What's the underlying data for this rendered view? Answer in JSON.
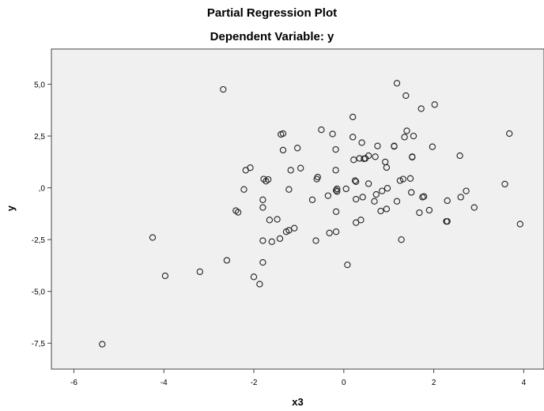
{
  "chart_data": {
    "type": "scatter",
    "title": "Partial Regression Plot",
    "subtitle": "Dependent Variable: y",
    "xlabel": "x3",
    "ylabel": "y",
    "xlim": [
      -6.5,
      4.45
    ],
    "ylim": [
      -8.75,
      6.7
    ],
    "x_ticks": [
      -6,
      -4,
      -2,
      0,
      2,
      4
    ],
    "x_tick_labels": [
      "-6",
      "-4",
      "-2",
      "0",
      "2",
      "4"
    ],
    "y_ticks": [
      -7.5,
      -5.0,
      -2.5,
      0.0,
      2.5,
      5.0
    ],
    "y_tick_labels": [
      "-7,5",
      "-5,0",
      "-2,5",
      ",0",
      "2,5",
      "5,0"
    ],
    "plot_background": "#f0f0f0",
    "marker_color": "#222222",
    "grid": false,
    "points": [
      [
        -5.37,
        -7.55
      ],
      [
        -4.25,
        -2.4
      ],
      [
        -3.97,
        -4.25
      ],
      [
        -3.2,
        -4.05
      ],
      [
        -2.68,
        4.75
      ],
      [
        -2.6,
        -3.5
      ],
      [
        -2.4,
        -1.1
      ],
      [
        -2.35,
        -1.18
      ],
      [
        -2.22,
        -0.08
      ],
      [
        -2.18,
        0.85
      ],
      [
        -2.08,
        0.97
      ],
      [
        -2.0,
        -4.3
      ],
      [
        -1.87,
        -4.65
      ],
      [
        -1.8,
        -3.6
      ],
      [
        -1.8,
        -0.95
      ],
      [
        -1.8,
        -2.55
      ],
      [
        -1.8,
        -0.58
      ],
      [
        -1.78,
        0.42
      ],
      [
        -1.73,
        0.32
      ],
      [
        -1.68,
        0.4
      ],
      [
        -1.65,
        -1.55
      ],
      [
        -1.6,
        -2.6
      ],
      [
        -1.48,
        -1.52
      ],
      [
        -1.42,
        -2.45
      ],
      [
        -1.4,
        2.58
      ],
      [
        -1.35,
        2.62
      ],
      [
        -1.35,
        1.82
      ],
      [
        -1.28,
        -2.12
      ],
      [
        -1.22,
        -2.05
      ],
      [
        -1.22,
        -0.08
      ],
      [
        -1.18,
        0.85
      ],
      [
        -1.1,
        -1.95
      ],
      [
        -1.03,
        1.92
      ],
      [
        -0.96,
        0.95
      ],
      [
        -0.7,
        -0.58
      ],
      [
        -0.62,
        -2.55
      ],
      [
        -0.6,
        0.42
      ],
      [
        -0.58,
        0.52
      ],
      [
        -0.5,
        2.8
      ],
      [
        -0.35,
        -0.38
      ],
      [
        -0.32,
        -2.18
      ],
      [
        -0.25,
        2.6
      ],
      [
        -0.18,
        0.85
      ],
      [
        -0.18,
        1.85
      ],
      [
        -0.17,
        -1.15
      ],
      [
        -0.17,
        -0.12
      ],
      [
        -0.17,
        -2.12
      ],
      [
        -0.15,
        -0.18
      ],
      [
        -0.15,
        -0.05
      ],
      [
        0.05,
        -0.05
      ],
      [
        0.08,
        -3.72
      ],
      [
        0.2,
        3.42
      ],
      [
        0.2,
        2.45
      ],
      [
        0.22,
        1.35
      ],
      [
        0.25,
        0.35
      ],
      [
        0.27,
        0.3
      ],
      [
        0.27,
        -0.55
      ],
      [
        0.27,
        -1.68
      ],
      [
        0.35,
        1.42
      ],
      [
        0.38,
        -1.55
      ],
      [
        0.4,
        2.18
      ],
      [
        0.42,
        -0.45
      ],
      [
        0.45,
        1.4
      ],
      [
        0.48,
        1.42
      ],
      [
        0.55,
        1.55
      ],
      [
        0.55,
        0.2
      ],
      [
        0.68,
        -0.65
      ],
      [
        0.7,
        1.5
      ],
      [
        0.72,
        -0.32
      ],
      [
        0.75,
        2.02
      ],
      [
        0.82,
        -1.12
      ],
      [
        0.85,
        -0.15
      ],
      [
        0.92,
        1.25
      ],
      [
        0.95,
        0.98
      ],
      [
        0.95,
        -1.02
      ],
      [
        0.97,
        -0.02
      ],
      [
        1.12,
        2.0
      ],
      [
        1.12,
        2.02
      ],
      [
        1.18,
        -0.65
      ],
      [
        1.18,
        5.05
      ],
      [
        1.25,
        0.35
      ],
      [
        1.28,
        -2.5
      ],
      [
        1.32,
        0.42
      ],
      [
        1.35,
        2.45
      ],
      [
        1.38,
        4.45
      ],
      [
        1.4,
        2.75
      ],
      [
        1.48,
        0.45
      ],
      [
        1.5,
        -0.22
      ],
      [
        1.52,
        1.5
      ],
      [
        1.52,
        1.48
      ],
      [
        1.55,
        2.5
      ],
      [
        1.68,
        -1.2
      ],
      [
        1.72,
        3.82
      ],
      [
        1.75,
        -0.45
      ],
      [
        1.78,
        -0.42
      ],
      [
        1.9,
        -1.08
      ],
      [
        1.97,
        1.98
      ],
      [
        2.02,
        4.02
      ],
      [
        2.28,
        -1.62
      ],
      [
        2.3,
        -1.62
      ],
      [
        2.3,
        -0.62
      ],
      [
        2.58,
        1.55
      ],
      [
        2.6,
        -0.45
      ],
      [
        2.72,
        -0.15
      ],
      [
        2.9,
        -0.95
      ],
      [
        3.58,
        0.18
      ],
      [
        3.68,
        2.62
      ],
      [
        3.92,
        -1.75
      ]
    ]
  }
}
